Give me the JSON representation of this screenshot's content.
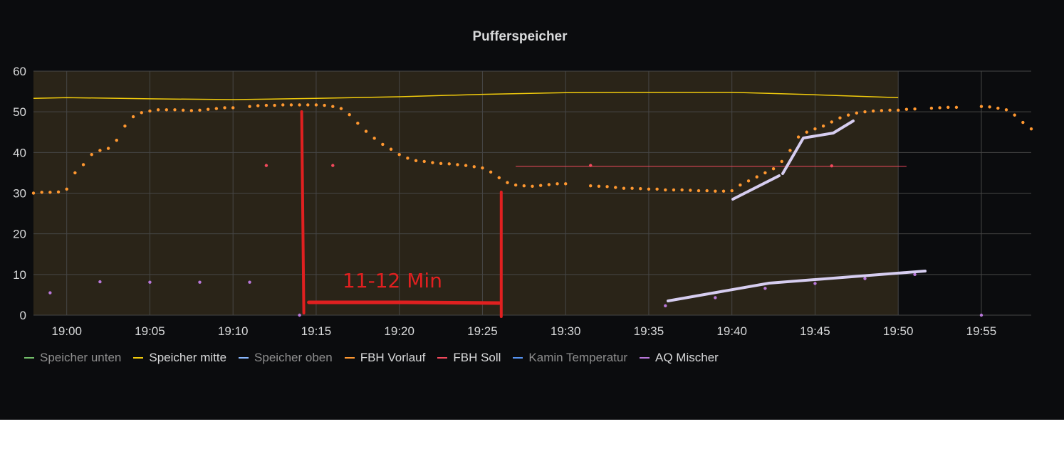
{
  "panel": {
    "title": "Pufferspeicher"
  },
  "colors": {
    "background": "#0b0c0e",
    "grid": "#464646",
    "axis_text": "#d8d9da",
    "annotation": "#e02020",
    "highlight": "#d6cdf0",
    "region_fill": "#2a2418"
  },
  "legend": [
    {
      "name": "Speicher unten",
      "color": "#73bf69",
      "hidden": true
    },
    {
      "name": "Speicher mitte",
      "color": "#f2cc0c",
      "hidden": false
    },
    {
      "name": "Speicher oben",
      "color": "#8ab8ff",
      "hidden": true
    },
    {
      "name": "FBH Vorlauf",
      "color": "#ff9830",
      "hidden": false
    },
    {
      "name": "FBH Soll",
      "color": "#f2495c",
      "hidden": false
    },
    {
      "name": "Kamin Temperatur",
      "color": "#5794f2",
      "hidden": true
    },
    {
      "name": "AQ Mischer",
      "color": "#b877d9",
      "hidden": false
    }
  ],
  "annotation": {
    "text": "11-12 Min"
  },
  "chart_data": {
    "type": "line",
    "title": "Pufferspeicher",
    "x_unit": "time (HH:MM)",
    "xlim": [
      "18:58",
      "19:58"
    ],
    "ylim": [
      0,
      60
    ],
    "y_ticks": [
      0,
      10,
      20,
      30,
      40,
      50,
      60
    ],
    "x_ticks": [
      "19:00",
      "19:05",
      "19:10",
      "19:15",
      "19:20",
      "19:25",
      "19:30",
      "19:35",
      "19:40",
      "19:45",
      "19:50",
      "19:55"
    ],
    "grid": true,
    "legend_position": "bottom-left",
    "shaded_region": {
      "from": "18:58",
      "to": "19:50"
    },
    "series": [
      {
        "name": "Speicher mitte",
        "style": "line",
        "color": "#f2cc0c",
        "points": [
          [
            "18:58",
            53.3
          ],
          [
            "19:00",
            53.5
          ],
          [
            "19:05",
            53.2
          ],
          [
            "19:10",
            53.0
          ],
          [
            "19:15",
            53.3
          ],
          [
            "19:20",
            53.7
          ],
          [
            "19:25",
            54.3
          ],
          [
            "19:30",
            54.7
          ],
          [
            "19:35",
            54.8
          ],
          [
            "19:40",
            54.8
          ],
          [
            "19:45",
            54.2
          ],
          [
            "19:50",
            53.5
          ]
        ]
      },
      {
        "name": "FBH Vorlauf",
        "style": "dots",
        "color": "#ff9830",
        "points": [
          [
            "18:58",
            30.0
          ],
          [
            "18:58:30",
            30.2
          ],
          [
            "18:59",
            30.2
          ],
          [
            "18:59:30",
            30.3
          ],
          [
            "19:00",
            31.0
          ],
          [
            "19:00:30",
            35.0
          ],
          [
            "19:01",
            37.0
          ],
          [
            "19:01:30",
            39.5
          ],
          [
            "19:02",
            40.5
          ],
          [
            "19:02:30",
            41.0
          ],
          [
            "19:03",
            43.0
          ],
          [
            "19:03:30",
            46.5
          ],
          [
            "19:04",
            48.8
          ],
          [
            "19:04:30",
            49.8
          ],
          [
            "19:05",
            50.2
          ],
          [
            "19:05:30",
            50.5
          ],
          [
            "19:06",
            50.5
          ],
          [
            "19:06:30",
            50.5
          ],
          [
            "19:07",
            50.4
          ],
          [
            "19:07:30",
            50.3
          ],
          [
            "19:08",
            50.4
          ],
          [
            "19:08:30",
            50.6
          ],
          [
            "19:09",
            50.8
          ],
          [
            "19:09:30",
            51.0
          ],
          [
            "19:10",
            51.0
          ],
          [
            "19:11",
            51.3
          ],
          [
            "19:11:30",
            51.5
          ],
          [
            "19:12",
            51.6
          ],
          [
            "19:12:30",
            51.6
          ],
          [
            "19:13",
            51.7
          ],
          [
            "19:13:30",
            51.7
          ],
          [
            "19:14",
            51.7
          ],
          [
            "19:14:30",
            51.7
          ],
          [
            "19:15",
            51.7
          ],
          [
            "19:15:30",
            51.6
          ],
          [
            "19:16",
            51.3
          ],
          [
            "19:16:30",
            50.8
          ],
          [
            "19:17",
            49.3
          ],
          [
            "19:17:30",
            47.2
          ],
          [
            "19:18",
            45.2
          ],
          [
            "19:18:30",
            43.5
          ],
          [
            "19:19",
            42.0
          ],
          [
            "19:19:30",
            40.8
          ],
          [
            "19:20",
            39.5
          ],
          [
            "19:20:30",
            38.6
          ],
          [
            "19:21",
            38.0
          ],
          [
            "19:21:30",
            37.8
          ],
          [
            "19:22",
            37.5
          ],
          [
            "19:22:30",
            37.3
          ],
          [
            "19:23",
            37.2
          ],
          [
            "19:23:30",
            37.0
          ],
          [
            "19:24",
            36.8
          ],
          [
            "19:24:30",
            36.5
          ],
          [
            "19:25",
            36.2
          ],
          [
            "19:25:30",
            35.2
          ],
          [
            "19:26",
            33.8
          ],
          [
            "19:26:30",
            32.6
          ],
          [
            "19:27",
            32.0
          ],
          [
            "19:27:30",
            31.8
          ],
          [
            "19:28",
            31.7
          ],
          [
            "19:28:30",
            31.9
          ],
          [
            "19:29",
            32.1
          ],
          [
            "19:29:30",
            32.3
          ],
          [
            "19:30",
            32.3
          ],
          [
            "19:31:30",
            31.8
          ],
          [
            "19:32",
            31.7
          ],
          [
            "19:32:30",
            31.6
          ],
          [
            "19:33",
            31.4
          ],
          [
            "19:33:30",
            31.2
          ],
          [
            "19:34",
            31.2
          ],
          [
            "19:34:30",
            31.1
          ],
          [
            "19:35",
            31.0
          ],
          [
            "19:35:30",
            31.0
          ],
          [
            "19:36",
            30.8
          ],
          [
            "19:36:30",
            30.8
          ],
          [
            "19:37",
            30.8
          ],
          [
            "19:37:30",
            30.7
          ],
          [
            "19:38",
            30.6
          ],
          [
            "19:38:30",
            30.6
          ],
          [
            "19:39",
            30.5
          ],
          [
            "19:39:30",
            30.5
          ],
          [
            "19:40",
            30.6
          ],
          [
            "19:40:30",
            32.0
          ],
          [
            "19:41",
            33.0
          ],
          [
            "19:41:30",
            34.0
          ],
          [
            "19:42",
            35.0
          ],
          [
            "19:42:30",
            36.0
          ],
          [
            "19:43",
            37.8
          ],
          [
            "19:43:30",
            40.5
          ],
          [
            "19:44",
            43.8
          ],
          [
            "19:44:30",
            45.0
          ],
          [
            "19:45",
            45.8
          ],
          [
            "19:45:30",
            46.5
          ],
          [
            "19:46",
            47.5
          ],
          [
            "19:46:30",
            48.5
          ],
          [
            "19:47",
            49.2
          ],
          [
            "19:47:30",
            49.7
          ],
          [
            "19:48",
            50.0
          ],
          [
            "19:48:30",
            50.2
          ],
          [
            "19:49",
            50.3
          ],
          [
            "19:49:30",
            50.4
          ],
          [
            "19:50",
            50.4
          ],
          [
            "19:50:30",
            50.6
          ],
          [
            "19:51",
            50.7
          ],
          [
            "19:52",
            50.9
          ],
          [
            "19:52:30",
            51.0
          ],
          [
            "19:53",
            51.1
          ],
          [
            "19:53:30",
            51.1
          ],
          [
            "19:55",
            51.3
          ],
          [
            "19:55:30",
            51.2
          ],
          [
            "19:56",
            50.9
          ],
          [
            "19:56:30",
            50.5
          ],
          [
            "19:57",
            49.2
          ],
          [
            "19:57:30",
            47.4
          ],
          [
            "19:58",
            45.8
          ]
        ]
      },
      {
        "name": "FBH Soll",
        "style": "points-and-line",
        "color": "#f2495c",
        "points": [
          [
            "19:12",
            36.8
          ],
          [
            "19:16",
            36.8
          ],
          [
            "19:31:30",
            36.8
          ],
          [
            "19:46",
            36.7
          ]
        ],
        "line": [
          [
            "19:27",
            36.6
          ],
          [
            "19:50:30",
            36.6
          ]
        ]
      },
      {
        "name": "AQ Mischer",
        "style": "dots",
        "color": "#b877d9",
        "points": [
          [
            "18:59",
            5.5
          ],
          [
            "19:02",
            8.2
          ],
          [
            "19:05",
            8.1
          ],
          [
            "19:08",
            8.1
          ],
          [
            "19:11",
            8.1
          ],
          [
            "19:14",
            0.0
          ],
          [
            "19:36",
            2.3
          ],
          [
            "19:39",
            4.3
          ],
          [
            "19:42",
            6.6
          ],
          [
            "19:45",
            7.8
          ],
          [
            "19:48",
            9.0
          ],
          [
            "19:51",
            10.0
          ],
          [
            "19:55",
            0.0
          ]
        ]
      }
    ],
    "annotations": [
      {
        "type": "red-bracket",
        "label": "11-12 Min",
        "from": "19:14",
        "to": "19:26"
      }
    ]
  }
}
